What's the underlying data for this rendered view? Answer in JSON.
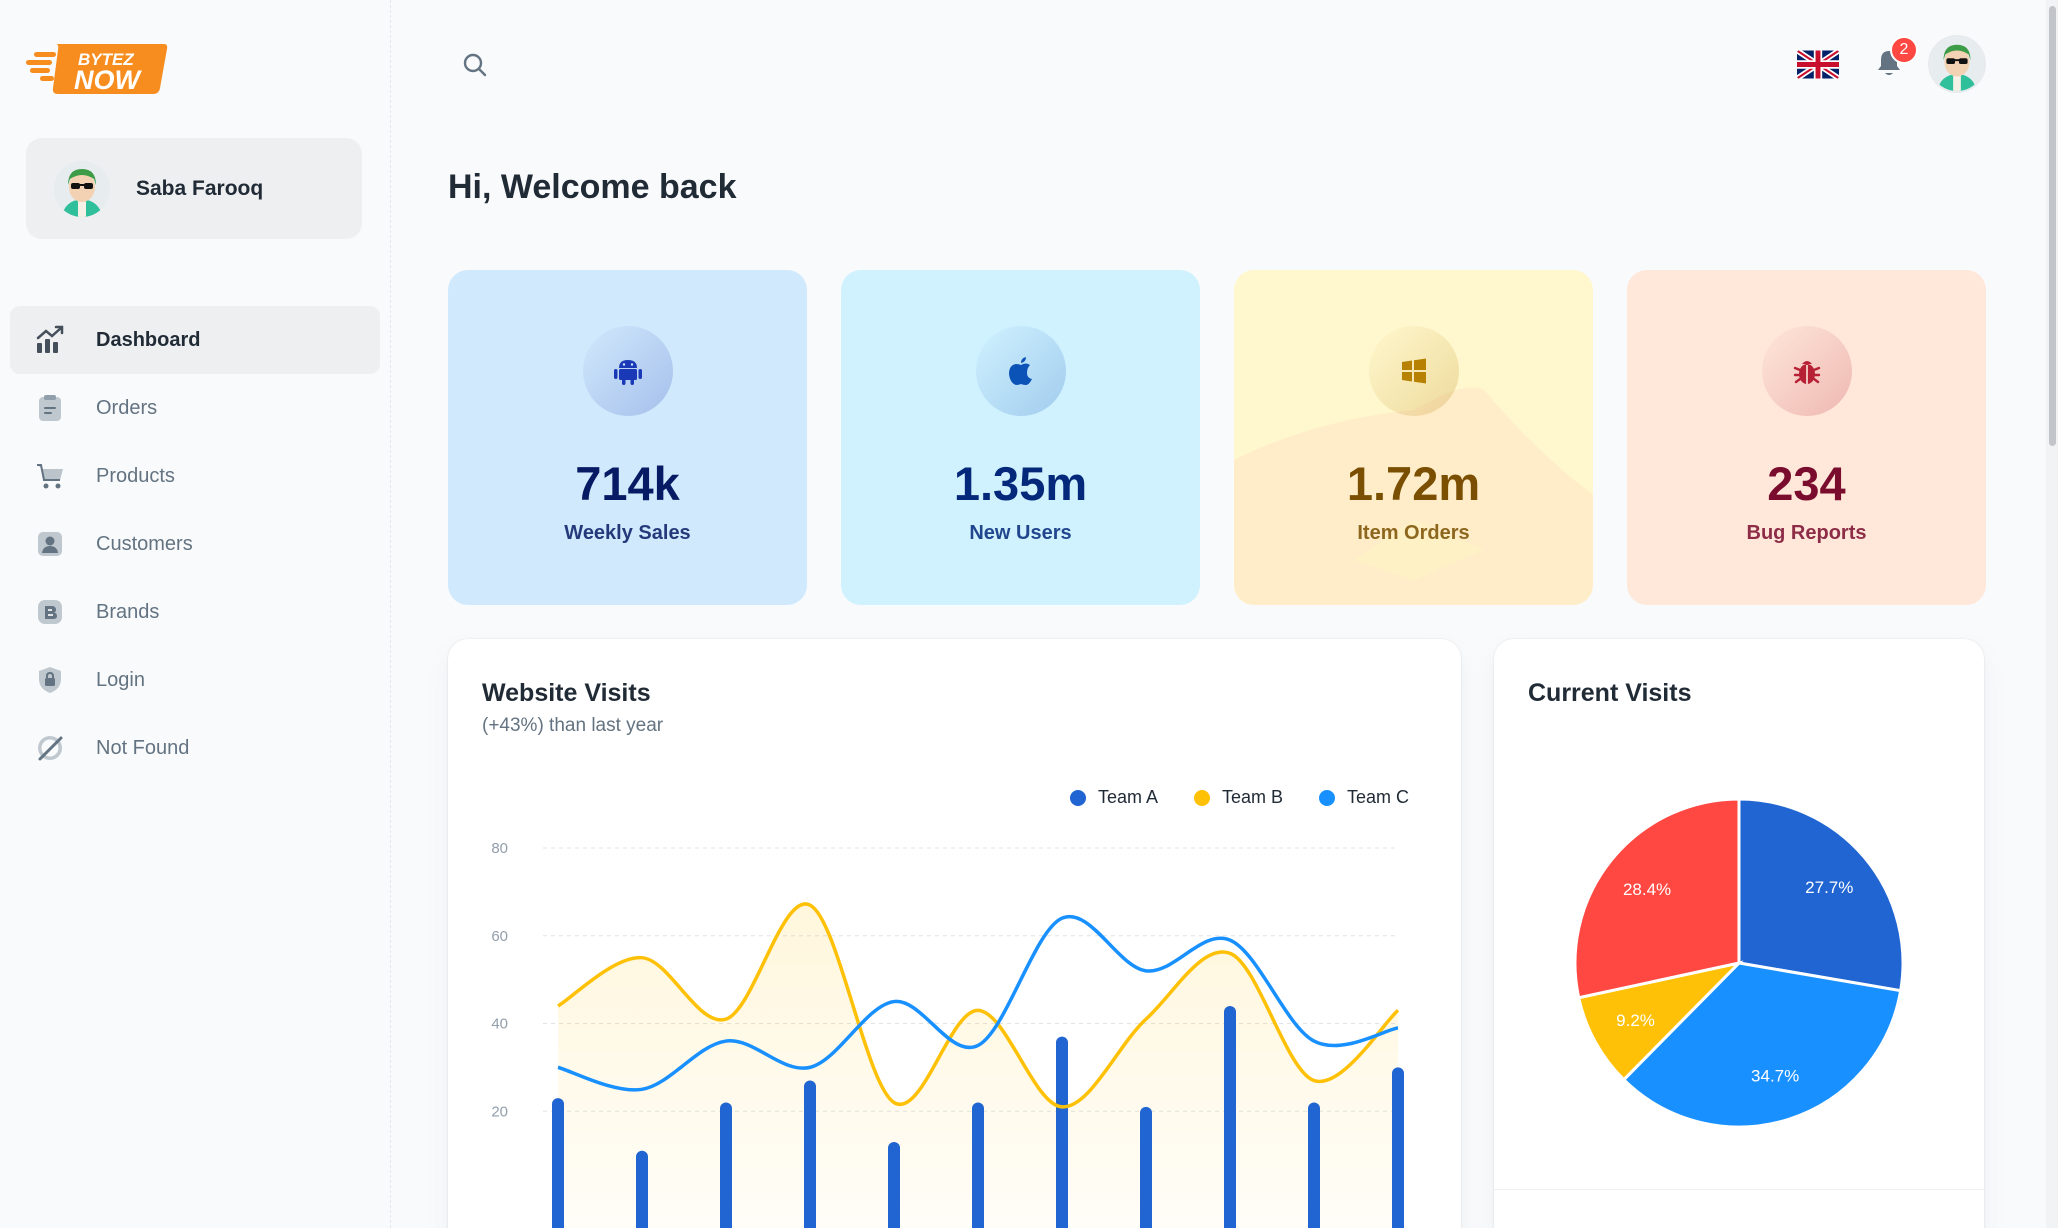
{
  "brand": {
    "logo_line1": "BYTEZ",
    "logo_line2": "NOW"
  },
  "account": {
    "name": "Saba Farooq"
  },
  "nav": {
    "items": [
      {
        "label": "Dashboard",
        "icon": "analytics-icon",
        "active": true
      },
      {
        "label": "Orders",
        "icon": "clipboard-icon",
        "active": false
      },
      {
        "label": "Products",
        "icon": "cart-icon",
        "active": false
      },
      {
        "label": "Customers",
        "icon": "person-icon",
        "active": false
      },
      {
        "label": "Brands",
        "icon": "brand-icon",
        "active": false
      },
      {
        "label": "Login",
        "icon": "lock-icon",
        "active": false
      },
      {
        "label": "Not Found",
        "icon": "block-icon",
        "active": false
      }
    ]
  },
  "topbar": {
    "notification_count": "2",
    "language": "English (UK flag)"
  },
  "welcome": "Hi, Welcome back",
  "stats": [
    {
      "value": "714k",
      "label": "Weekly Sales",
      "icon": "android-icon",
      "bg": "#d1e9fc",
      "fg": "#061b64",
      "iconColor": "#1939b7"
    },
    {
      "value": "1.35m",
      "label": "New Users",
      "icon": "apple-icon",
      "bg": "#d0f2ff",
      "fg": "#04297a",
      "iconColor": "#0c53b7"
    },
    {
      "value": "1.72m",
      "label": "Item Orders",
      "icon": "windows-icon",
      "bg": "#fff7cd",
      "fg": "#7a4f01",
      "iconColor": "#b78103"
    },
    {
      "value": "234",
      "label": "Bug Reports",
      "icon": "bug-icon",
      "bg": "#ffe7d9",
      "fg": "#7a0c2e",
      "iconColor": "#b72136"
    }
  ],
  "website_visits": {
    "title": "Website Visits",
    "subtitle": "(+43%) than last year"
  },
  "current_visits": {
    "title": "Current Visits"
  },
  "chart_data": [
    {
      "type": "line",
      "title": "Website Visits",
      "subtitle": "(+43%) than last year",
      "ylim": [
        0,
        80
      ],
      "yticks": [
        20,
        40,
        60,
        80
      ],
      "legend": [
        "Team A",
        "Team B",
        "Team C"
      ],
      "series": [
        {
          "name": "Team A",
          "kind": "bar",
          "color": "#2065d1",
          "values": [
            23,
            11,
            22,
            27,
            13,
            22,
            37,
            21,
            44,
            22,
            30
          ]
        },
        {
          "name": "Team B",
          "kind": "area",
          "color": "#ffc107",
          "values": [
            44,
            55,
            41,
            67,
            22,
            43,
            21,
            41,
            56,
            27,
            43
          ]
        },
        {
          "name": "Team C",
          "kind": "line",
          "color": "#1890ff",
          "values": [
            30,
            25,
            36,
            30,
            45,
            35,
            64,
            52,
            59,
            36,
            39
          ]
        }
      ]
    },
    {
      "type": "pie",
      "title": "Current Visits",
      "slices": [
        {
          "label": "27.7%",
          "value": 27.7,
          "color": "#2065d1"
        },
        {
          "label": "34.7%",
          "value": 34.7,
          "color": "#1890ff"
        },
        {
          "label": "9.2%",
          "value": 9.2,
          "color": "#ffc107"
        },
        {
          "label": "28.4%",
          "value": 28.4,
          "color": "#ff4842"
        }
      ]
    }
  ]
}
